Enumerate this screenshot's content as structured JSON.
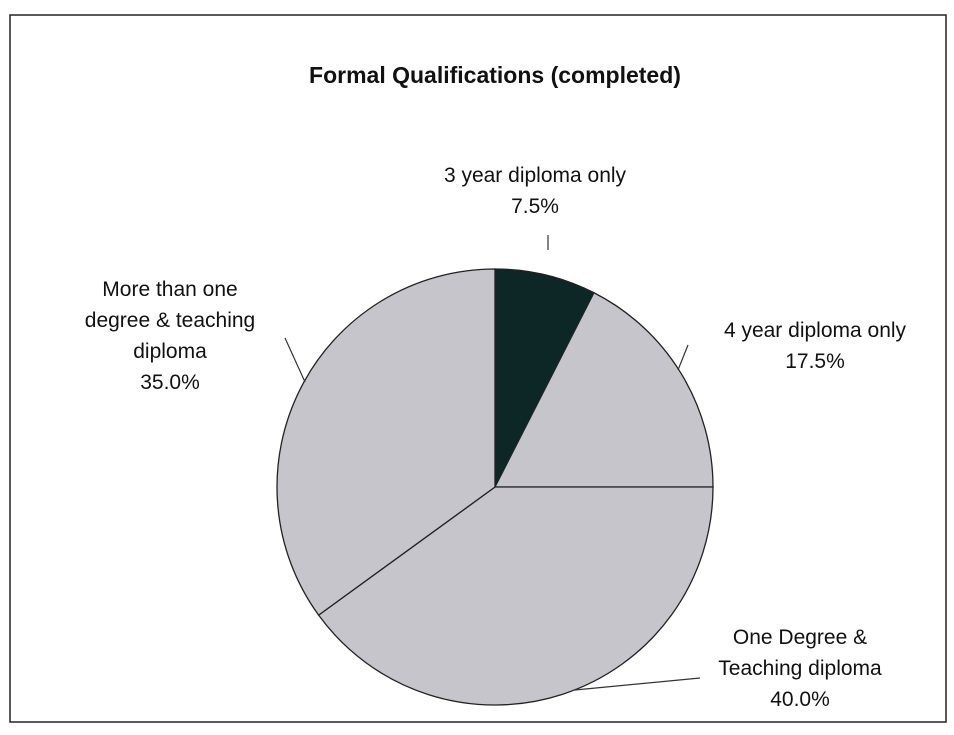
{
  "chart_data": {
    "type": "pie",
    "title": "Formal Qualifications (completed)",
    "categories": [
      "3 year diploma only",
      "4 year diploma only",
      "One Degree & Teaching diploma",
      "More than one degree & teaching diploma"
    ],
    "values": [
      7.5,
      17.5,
      40.0,
      35.0
    ],
    "value_labels": [
      "7.5%",
      "17.5%",
      "40.0%",
      "35.0%"
    ],
    "colors": [
      "#0d2626",
      "#c6c5cc",
      "#c6c5cc",
      "#c6c5cc"
    ]
  }
}
